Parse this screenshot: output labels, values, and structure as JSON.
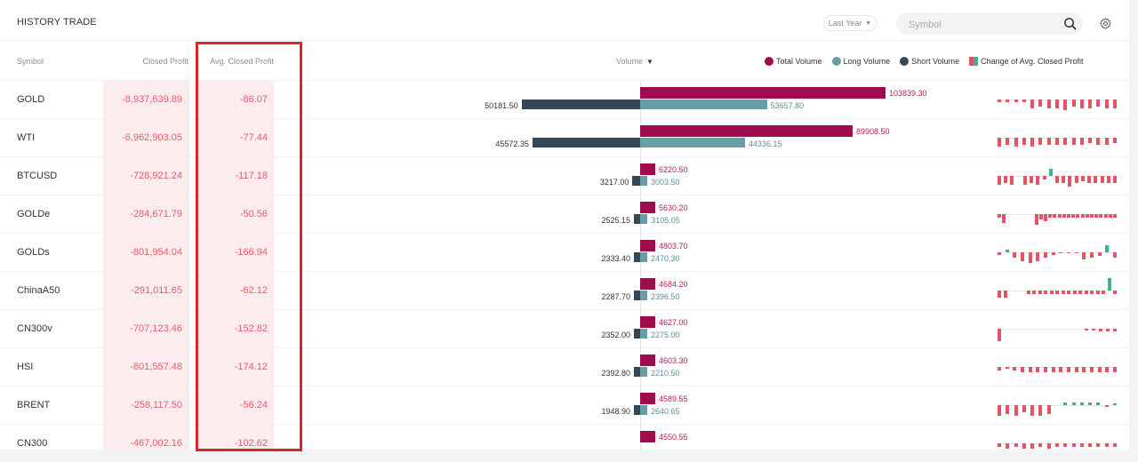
{
  "header": {
    "title": "HISTORY TRADE",
    "period": "Last Year",
    "search_placeholder": "Symbol"
  },
  "columns": {
    "symbol": "Symbol",
    "closed_profit": "Closed Profit",
    "avg_closed_profit": "Avg. Closed Profit",
    "volume": "Volume"
  },
  "legend": {
    "total": "Total Volume",
    "long": "Long Volume",
    "short": "Short Volume",
    "change": "Change of Avg. Closed Profit"
  },
  "colors": {
    "total": "#9e0c4e",
    "long": "#6a9ea6",
    "short": "#344756",
    "negative": "#e05561",
    "positive": "#3bb38c",
    "highlight": "#d9262c"
  },
  "rows": [
    {
      "symbol": "GOLD",
      "closed_profit": "-8,937,639.89",
      "avg_closed_profit": "-86.07",
      "total": "103839.30",
      "long": "53657.80",
      "short": "50181.50"
    },
    {
      "symbol": "WTI",
      "closed_profit": "-6,962,903.05",
      "avg_closed_profit": "-77.44",
      "total": "89908.50",
      "long": "44336.15",
      "short": "45572.35"
    },
    {
      "symbol": "BTCUSD",
      "closed_profit": "-728,921.24",
      "avg_closed_profit": "-117.18",
      "total": "6220.50",
      "long": "3003.50",
      "short": "3217.00"
    },
    {
      "symbol": "GOLDe",
      "closed_profit": "-284,671.79",
      "avg_closed_profit": "-50.56",
      "total": "5630.20",
      "long": "3105.05",
      "short": "2525.15"
    },
    {
      "symbol": "GOLDs",
      "closed_profit": "-801,954.04",
      "avg_closed_profit": "-166.94",
      "total": "4803.70",
      "long": "2470.30",
      "short": "2333.40"
    },
    {
      "symbol": "ChinaA50",
      "closed_profit": "-291,011.65",
      "avg_closed_profit": "-62.12",
      "total": "4684.20",
      "long": "2396.50",
      "short": "2287.70"
    },
    {
      "symbol": "CN300v",
      "closed_profit": "-707,123.46",
      "avg_closed_profit": "-152.82",
      "total": "4627.00",
      "long": "2275.00",
      "short": "2352.00"
    },
    {
      "symbol": "HSI",
      "closed_profit": "-801,557.48",
      "avg_closed_profit": "-174.12",
      "total": "4603.30",
      "long": "2210.50",
      "short": "2392.80"
    },
    {
      "symbol": "BRENT",
      "closed_profit": "-258,117.50",
      "avg_closed_profit": "-56.24",
      "total": "4589.55",
      "long": "2640.65",
      "short": "1948.90"
    },
    {
      "symbol": "CN300",
      "closed_profit": "-467,002.16",
      "avg_closed_profit": "-102.62",
      "total": "4550.55",
      "long": "",
      "short": ""
    }
  ],
  "sparks": [
    [
      -3,
      -3,
      -3,
      -3,
      -10,
      -8,
      -10,
      -10,
      -12,
      -8,
      -10,
      -10,
      -8,
      -10,
      -10
    ],
    [
      -10,
      -8,
      -10,
      -8,
      -10,
      -8,
      -8,
      -8,
      -8,
      -8,
      -8,
      -6,
      -8,
      -8,
      -6
    ],
    [
      -10,
      -8,
      -10,
      0,
      -10,
      -8,
      -10,
      -4,
      8,
      -8,
      -8,
      -12,
      -8,
      -6,
      -8,
      -8,
      -8,
      -8,
      -8
    ],
    [
      -4,
      -10,
      0,
      0,
      0,
      0,
      0,
      0,
      -12,
      -6,
      -8,
      -4,
      -4,
      -4,
      -4,
      -4,
      -4,
      -4,
      -4,
      -4,
      -4,
      -4,
      -4,
      -4,
      -4,
      -4
    ],
    [
      -3,
      3,
      -6,
      -10,
      -12,
      -10,
      -6,
      -3,
      -1,
      -1,
      -1,
      -8,
      -6,
      -4,
      8,
      -6
    ],
    [
      -8,
      -8,
      0,
      0,
      0,
      -4,
      -4,
      -4,
      -4,
      -4,
      -4,
      -4,
      -4,
      -4,
      -4,
      -4,
      -4,
      -4,
      -4,
      14,
      -4
    ],
    [
      -14,
      0,
      0,
      0,
      0,
      0,
      0,
      0,
      0,
      0,
      0,
      0,
      -2,
      -2,
      -3,
      -3,
      -3
    ],
    [
      -4,
      -2,
      -4,
      -6,
      -6,
      -6,
      -6,
      -6,
      -6,
      -6,
      -6,
      -6,
      -6,
      -6,
      -6,
      -6
    ],
    [
      -12,
      -10,
      -12,
      -8,
      -12,
      -12,
      -10,
      0,
      3,
      3,
      3,
      3,
      3,
      -2,
      2
    ],
    [
      -4,
      -6,
      -4,
      -6,
      -6,
      -4,
      -6,
      -4,
      -4,
      -4,
      -4,
      -4,
      -4,
      -4,
      -4
    ]
  ],
  "scale": {
    "max_volume": 103839.3
  }
}
